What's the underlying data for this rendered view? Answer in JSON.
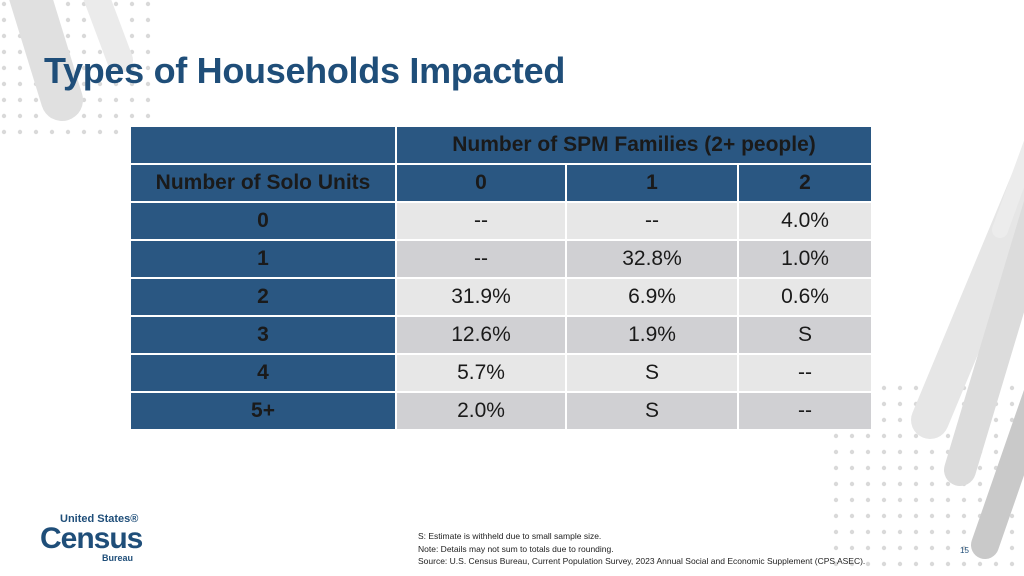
{
  "slide": {
    "title": "Types of Households Impacted",
    "page_number": "15"
  },
  "table": {
    "group_header": "Number of SPM Families (2+ people)",
    "row_header_label": "Number of Solo Units",
    "column_labels": [
      "0",
      "1",
      "2"
    ],
    "rows": [
      {
        "label": "0",
        "values": [
          "--",
          "--",
          "4.0%"
        ]
      },
      {
        "label": "1",
        "values": [
          "--",
          "32.8%",
          "1.0%"
        ]
      },
      {
        "label": "2",
        "values": [
          "31.9%",
          "6.9%",
          "0.6%"
        ]
      },
      {
        "label": "3",
        "values": [
          "12.6%",
          "1.9%",
          "S"
        ]
      },
      {
        "label": "4",
        "values": [
          "5.7%",
          "S",
          "--"
        ]
      },
      {
        "label": "5+",
        "values": [
          "2.0%",
          "S",
          "--"
        ]
      }
    ]
  },
  "notes": {
    "line1": "S: Estimate is withheld due to small sample size.",
    "line2": "Note: Details may not sum to totals due to rounding.",
    "line3": "Source: U.S. Census Bureau, Current Population Survey, 2023 Annual Social and Economic Supplement (CPS ASEC)."
  },
  "logo": {
    "united_states": "United States®",
    "census": "Census",
    "bureau": "Bureau"
  },
  "colors": {
    "title": "#1f4e79",
    "header_fill": "#2a5782",
    "row_light": "#e7e7e7",
    "row_dark": "#d0d0d3"
  }
}
